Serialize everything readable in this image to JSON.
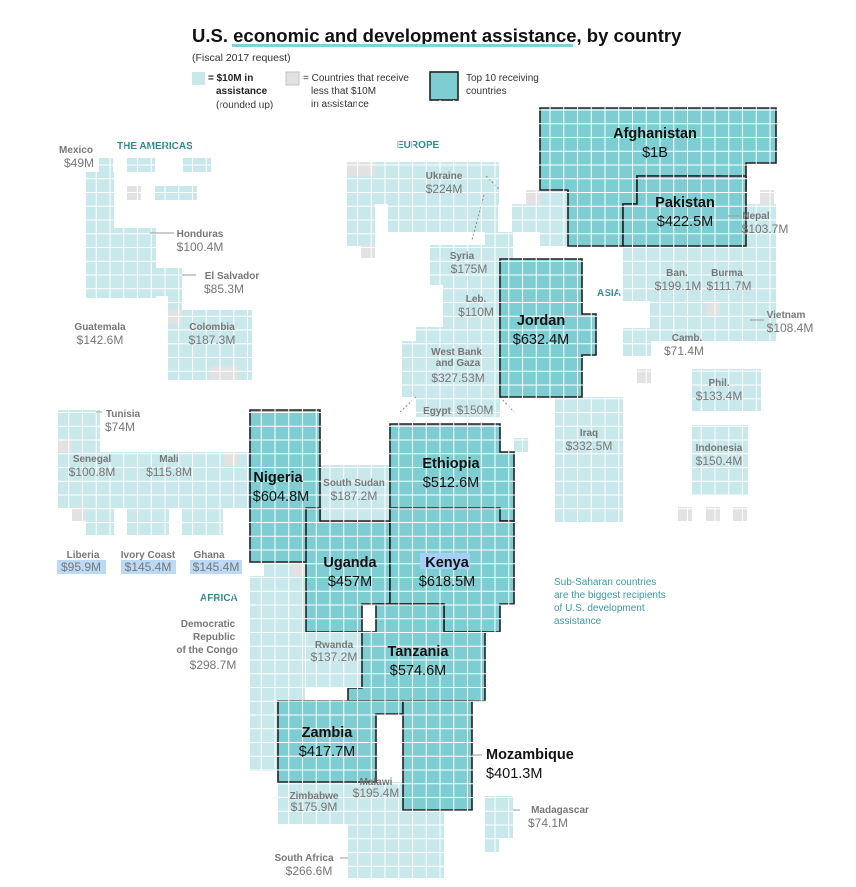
{
  "title": "U.S. economic and development assistance, by country",
  "subtitle": "(Fiscal 2017 request)",
  "legend": {
    "unit_bold": "= $10M in assistance",
    "unit_note": "(rounded up)",
    "small_label": "= Countries that receive less that $10M in assistance",
    "top10_label": "Top 10 receiving countries"
  },
  "regions": {
    "americas": "THE AMERICAS",
    "europe": "EUROPE",
    "asia": "ASIA",
    "africa": "AFRICA"
  },
  "note": "Sub-Saharan countries are the biggest recipients of U.S. development assistance",
  "colors": {
    "cell_fill": "#c9e8ec",
    "top10_fill": "#7ecdd3",
    "small_fill": "#e2e2e2",
    "outline": "#222222",
    "accent": "#2f8a8f"
  },
  "countries": [
    {
      "name": "Afghanistan",
      "value": "$1B",
      "top10": true
    },
    {
      "name": "Pakistan",
      "value": "$422.5M",
      "top10": true
    },
    {
      "name": "Jordan",
      "value": "$632.4M",
      "top10": true
    },
    {
      "name": "Nigeria",
      "value": "$604.8M",
      "top10": true
    },
    {
      "name": "Ethiopia",
      "value": "$512.6M",
      "top10": true
    },
    {
      "name": "Uganda",
      "value": "$457M",
      "top10": true
    },
    {
      "name": "Kenya",
      "value": "$618.5M",
      "top10": true
    },
    {
      "name": "Tanzania",
      "value": "$574.6M",
      "top10": true
    },
    {
      "name": "Zambia",
      "value": "$417.7M",
      "top10": true
    },
    {
      "name": "Mozambique",
      "value": "$401.3M",
      "top10": true
    },
    {
      "name": "Mexico",
      "value": "$49M"
    },
    {
      "name": "Honduras",
      "value": "$100.4M"
    },
    {
      "name": "El Salvador",
      "value": "$85.3M"
    },
    {
      "name": "Guatemala",
      "value": "$142.6M"
    },
    {
      "name": "Colombia",
      "value": "$187.3M"
    },
    {
      "name": "Ukraine",
      "value": "$224M"
    },
    {
      "name": "Syria",
      "value": "$175M"
    },
    {
      "name": "Leb.",
      "value": "$110M"
    },
    {
      "name": "West Bank and Gaza",
      "value": "$327.53M"
    },
    {
      "name": "Egypt",
      "value": "$150M"
    },
    {
      "name": "Nepal",
      "value": "$103.7M"
    },
    {
      "name": "Ban.",
      "value": "$199.1M"
    },
    {
      "name": "Burma",
      "value": "$111.7M"
    },
    {
      "name": "Vietnam",
      "value": "$108.4M"
    },
    {
      "name": "Camb.",
      "value": "$71.4M"
    },
    {
      "name": "Phil.",
      "value": "$133.4M"
    },
    {
      "name": "Indonesia",
      "value": "$150.4M"
    },
    {
      "name": "Iraq",
      "value": "$332.5M"
    },
    {
      "name": "Tunisia",
      "value": "$74M"
    },
    {
      "name": "Senegal",
      "value": "$100.8M"
    },
    {
      "name": "Mali",
      "value": "$115.8M"
    },
    {
      "name": "Liberia",
      "value": "$95.9M"
    },
    {
      "name": "Ivory Coast",
      "value": "$145.4M"
    },
    {
      "name": "Ghana",
      "value": "$145.4M"
    },
    {
      "name": "South Sudan",
      "value": "$187.2M"
    },
    {
      "name": "Democratic Republic of the Congo",
      "value": "$298.7M"
    },
    {
      "name": "Rwanda",
      "value": "$137.2M"
    },
    {
      "name": "Zimbabwe",
      "value": "$175.9M"
    },
    {
      "name": "Malawi",
      "value": "$195.4M"
    },
    {
      "name": "South Africa",
      "value": "$266.6M"
    },
    {
      "name": "Madagascar",
      "value": "$74.1M"
    }
  ]
}
